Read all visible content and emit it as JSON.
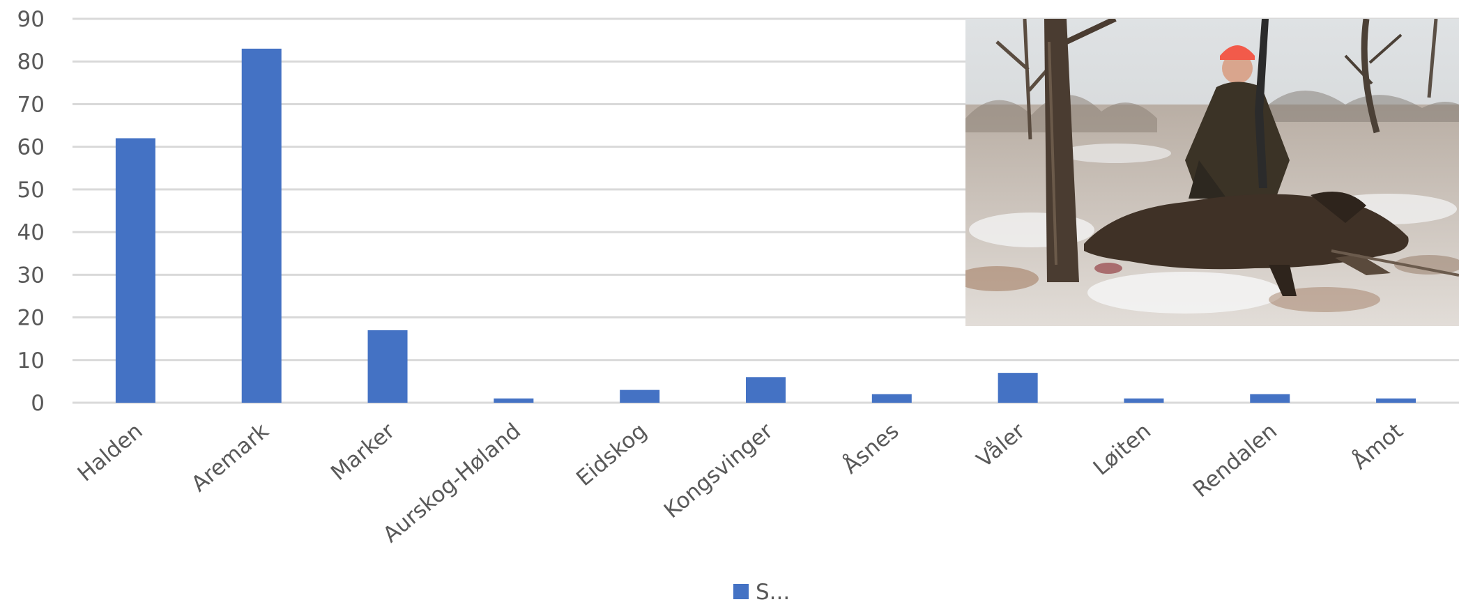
{
  "chart_data": {
    "type": "bar",
    "categories": [
      "Halden",
      "Aremark",
      "Marker",
      "Aurskog-Høland",
      "Eidskog",
      "Kongsvinger",
      "Åsnes",
      "Våler",
      "Løiten",
      "Rendalen",
      "Åmot"
    ],
    "series": [
      {
        "name": "S...",
        "values": [
          62,
          83,
          17,
          1,
          3,
          6,
          2,
          7,
          1,
          2,
          1
        ]
      }
    ],
    "ylim": [
      0,
      90
    ],
    "yticks": [
      0,
      10,
      20,
      30,
      40,
      50,
      60,
      70,
      80,
      90
    ],
    "grid": true,
    "legend": "bottom-center",
    "bar_color": "#4472C4",
    "grid_color": "#D9D9D9",
    "text_color": "#595959"
  },
  "inset_photo": {
    "subject": "hunter-with-wild-boar-photo"
  }
}
